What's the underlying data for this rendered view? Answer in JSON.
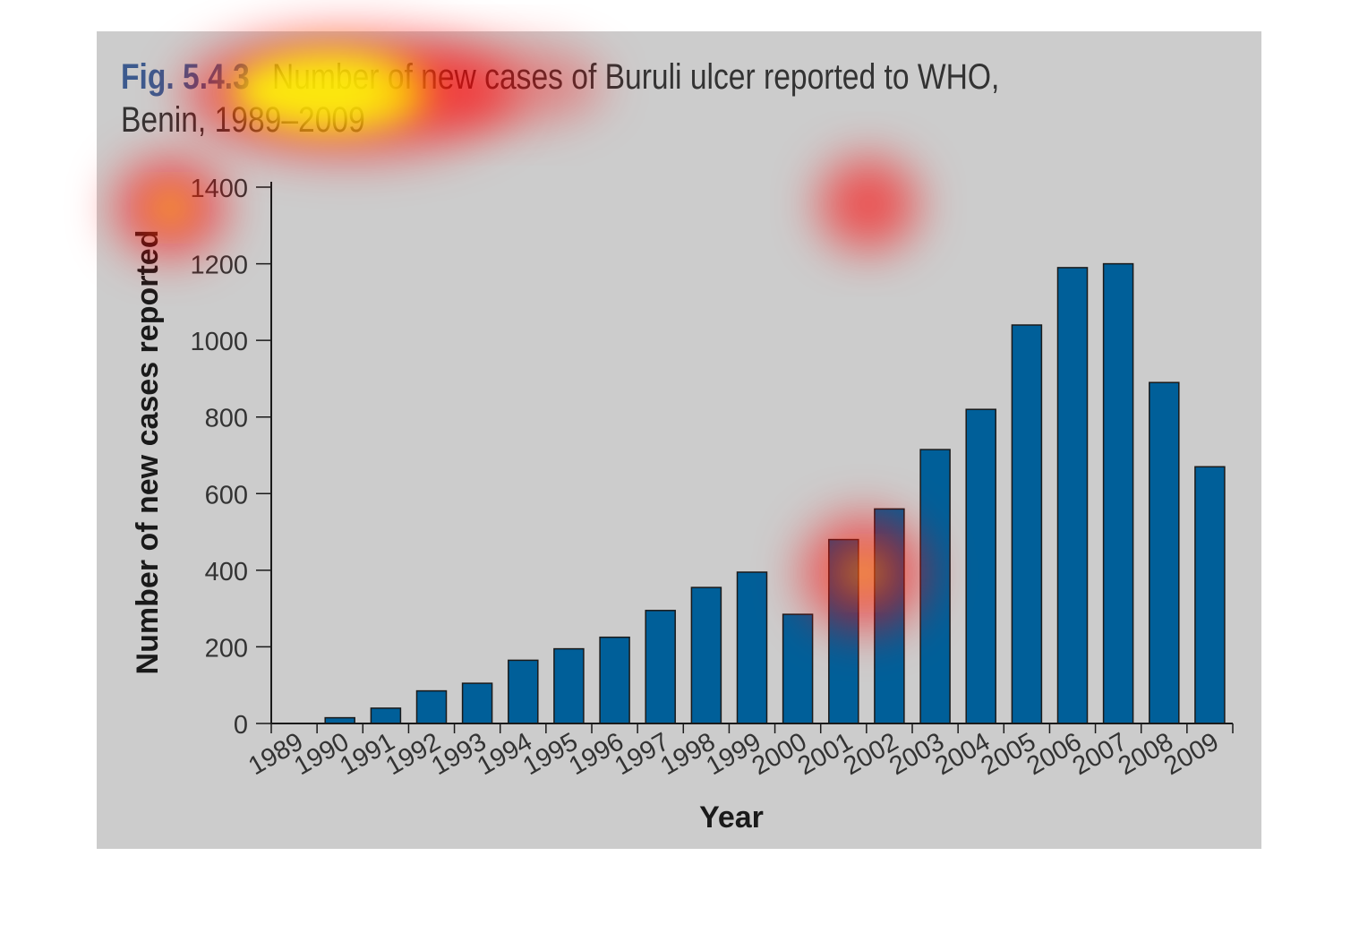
{
  "figure": {
    "label": "Fig. 5.4.3",
    "title": "Number of new cases of Buruli ulcer reported to WHO, Benin, 1989–2009"
  },
  "chart_data": {
    "type": "bar",
    "categories": [
      "1989",
      "1990",
      "1991",
      "1992",
      "1993",
      "1994",
      "1995",
      "1996",
      "1997",
      "1998",
      "1999",
      "2000",
      "2001",
      "2002",
      "2003",
      "2004",
      "2005",
      "2006",
      "2007",
      "2008",
      "2009"
    ],
    "values": [
      0,
      15,
      40,
      85,
      105,
      165,
      195,
      225,
      295,
      355,
      395,
      285,
      480,
      560,
      715,
      820,
      1040,
      1190,
      1200,
      890,
      670
    ],
    "xlabel": "Year",
    "ylabel": "Number of new cases reported",
    "ylim": [
      0,
      1400
    ],
    "yticks": [
      0,
      200,
      400,
      600,
      800,
      1000,
      1200,
      1400
    ],
    "bar_color": "#005f99",
    "background_color": "#cccccc",
    "grid": false
  },
  "overlay": {
    "type": "attention heatmap",
    "colors": [
      "#ff0000",
      "#ffff00"
    ]
  }
}
